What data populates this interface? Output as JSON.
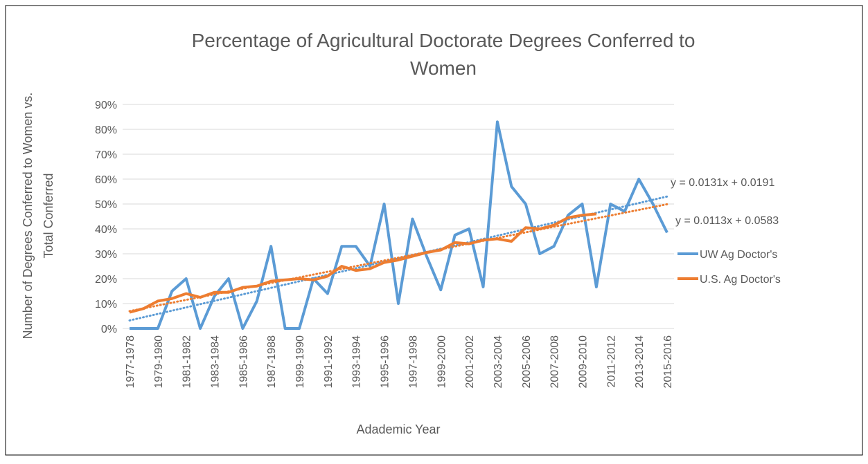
{
  "chart_data": {
    "type": "line",
    "title": "Percentage of Agricultural Doctorate Degrees Conferred to Women",
    "ylabel": "Number of Degrees Conferred to Women vs. Total Conferred",
    "xlabel": "Adademic Year",
    "categories": [
      "1977-1978",
      null,
      "1979-1980",
      null,
      "1981-1982",
      null,
      "1983-1984",
      null,
      "1985-1986",
      null,
      "1987-1988",
      null,
      "1999-1990",
      null,
      "1991-1992",
      null,
      "1993-1994",
      null,
      "1995-1996",
      null,
      "1997-1998",
      null,
      "1999-2000",
      null,
      "2001-2002",
      null,
      "2003-2004",
      null,
      "2005-2006",
      null,
      "2007-2008",
      null,
      "2009-2010",
      null,
      "2011-2012",
      null,
      "2013-2014",
      null,
      "2015-2016"
    ],
    "series": [
      {
        "name": "UW Ag Doctor's",
        "color": "#5b9bd5",
        "values": [
          0,
          0,
          0,
          15,
          20,
          0,
          13,
          20,
          0,
          11,
          33,
          0,
          0,
          20,
          14,
          33,
          33,
          25,
          50,
          10,
          44,
          29,
          15.5,
          37.5,
          40,
          16.7,
          83,
          57,
          50,
          30,
          33,
          45.5,
          50,
          16.7,
          50,
          47,
          60,
          50,
          38.5
        ],
        "trendline": {
          "label": "y = 0.0131x + 0.0191",
          "slope": 1.31,
          "intercept": 1.91
        }
      },
      {
        "name": "U.S. Ag Doctor's",
        "color": "#ed7d31",
        "values": [
          6.5,
          8,
          11,
          12,
          14,
          12.5,
          14.5,
          14.5,
          16.5,
          17,
          19,
          19.5,
          20,
          19.5,
          21,
          25,
          23.3,
          24,
          26.5,
          27.5,
          29,
          30.5,
          31.5,
          34.5,
          34,
          35.5,
          36,
          35,
          40.5,
          40,
          41.5,
          44.5,
          45.5,
          46,
          null,
          null,
          null,
          null,
          null
        ],
        "trendline": {
          "label": "y = 0.0113x + 0.0583",
          "slope": 1.13,
          "intercept": 5.83
        }
      }
    ],
    "ylim": [
      0,
      90
    ],
    "yticks": [
      {
        "value": 0,
        "label": "0%"
      },
      {
        "value": 10,
        "label": "10%"
      },
      {
        "value": 20,
        "label": "20%"
      },
      {
        "value": 30,
        "label": "30%"
      },
      {
        "value": 40,
        "label": "40%"
      },
      {
        "value": 50,
        "label": "50%"
      },
      {
        "value": 60,
        "label": "60%"
      },
      {
        "value": 70,
        "label": "70%"
      },
      {
        "value": 80,
        "label": "80%"
      },
      {
        "value": 90,
        "label": "90%"
      }
    ],
    "grid": true,
    "legend": "right"
  }
}
